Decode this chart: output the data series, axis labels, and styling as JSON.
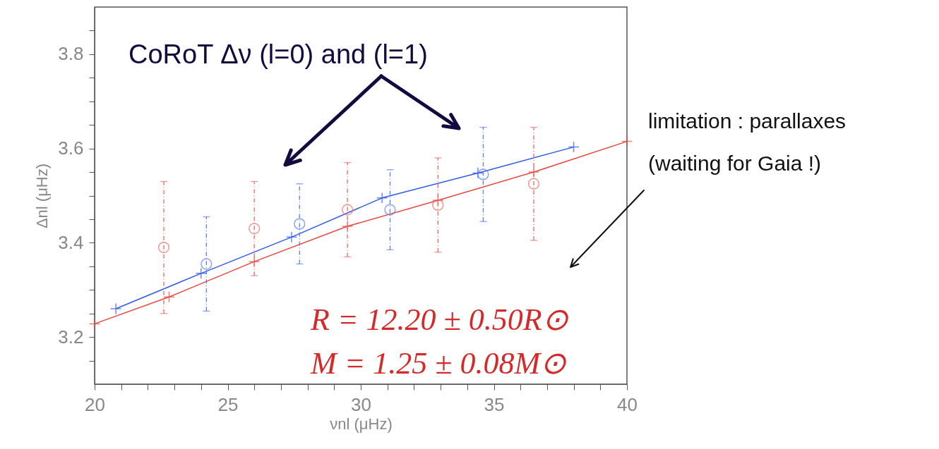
{
  "chart_data": {
    "type": "line",
    "xlabel": "νnl (μHz)",
    "ylabel": "Δnl (μHz)",
    "xlim": [
      20,
      40
    ],
    "ylim": [
      3.1,
      3.9
    ],
    "xticks": [
      20,
      {
        "value": 21,
        "label": null
      },
      {
        "value": 22,
        "label": null
      },
      {
        "value": 23,
        "label": null
      },
      {
        "value": 24,
        "label": null
      },
      25,
      {
        "value": 26,
        "label": null
      },
      {
        "value": 27,
        "label": null
      },
      {
        "value": 28,
        "label": null
      },
      {
        "value": 29,
        "label": null
      },
      30,
      {
        "value": 31,
        "label": null
      },
      {
        "value": 32,
        "label": null
      },
      {
        "value": 33,
        "label": null
      },
      {
        "value": 34,
        "label": null
      },
      35,
      {
        "value": 36,
        "label": null
      },
      {
        "value": 37,
        "label": null
      },
      {
        "value": 38,
        "label": null
      },
      {
        "value": 39,
        "label": null
      },
      40
    ],
    "yticks": [
      {
        "value": 3.15,
        "label": null
      },
      3.2,
      {
        "value": 3.25,
        "label": null
      },
      {
        "value": 3.3,
        "label": null
      },
      {
        "value": 3.35,
        "label": null
      },
      3.4,
      {
        "value": 3.45,
        "label": null
      },
      {
        "value": 3.5,
        "label": null
      },
      {
        "value": 3.55,
        "label": null
      },
      3.6,
      {
        "value": 3.65,
        "label": null
      },
      {
        "value": 3.7,
        "label": null
      },
      {
        "value": 3.75,
        "label": null
      },
      3.8,
      {
        "value": 3.85,
        "label": null
      }
    ],
    "grid": false,
    "series": [
      {
        "type": "line",
        "marker": "cross",
        "line_style": "solid",
        "color": "#e8463e",
        "x": [
          20,
          22.8,
          26,
          29.5,
          32.9,
          36.5,
          40
        ],
        "values": [
          3.228,
          3.285,
          3.36,
          3.435,
          3.49,
          3.55,
          3.615
        ]
      },
      {
        "type": "line",
        "marker": "cross",
        "line_style": "solid",
        "color": "#2f5ae8",
        "x": [
          20.8,
          24,
          27.4,
          30.8,
          34.4,
          38
        ],
        "values": [
          3.26,
          3.335,
          3.412,
          3.495,
          3.548,
          3.603
        ]
      },
      {
        "type": "scatter",
        "marker": "circle",
        "color": "#ec6a62",
        "x": [
          22.6,
          26,
          29.5,
          32.9,
          36.5
        ],
        "values": [
          3.39,
          3.43,
          3.47,
          3.48,
          3.525
        ],
        "errors": [
          [
            3.25,
            3.53
          ],
          [
            3.33,
            3.53
          ],
          [
            3.37,
            3.57
          ],
          [
            3.38,
            3.58
          ],
          [
            3.405,
            3.645
          ]
        ]
      },
      {
        "type": "scatter",
        "marker": "circle",
        "color": "#5a7ef0",
        "x": [
          24.2,
          27.7,
          31.1,
          34.6
        ],
        "values": [
          3.355,
          3.44,
          3.47,
          3.545
        ],
        "errors": [
          [
            3.255,
            3.455
          ],
          [
            3.355,
            3.525
          ],
          [
            3.385,
            3.555
          ],
          [
            3.445,
            3.645
          ]
        ]
      }
    ],
    "annotations": [
      "CoRoT Δν (l=0) and (l=1)",
      "R = 12.20 ± 0.50R⊙",
      "M = 1.25 ± 0.08M⊙",
      "limitation : parallaxes",
      "(waiting for Gaia !)"
    ]
  }
}
